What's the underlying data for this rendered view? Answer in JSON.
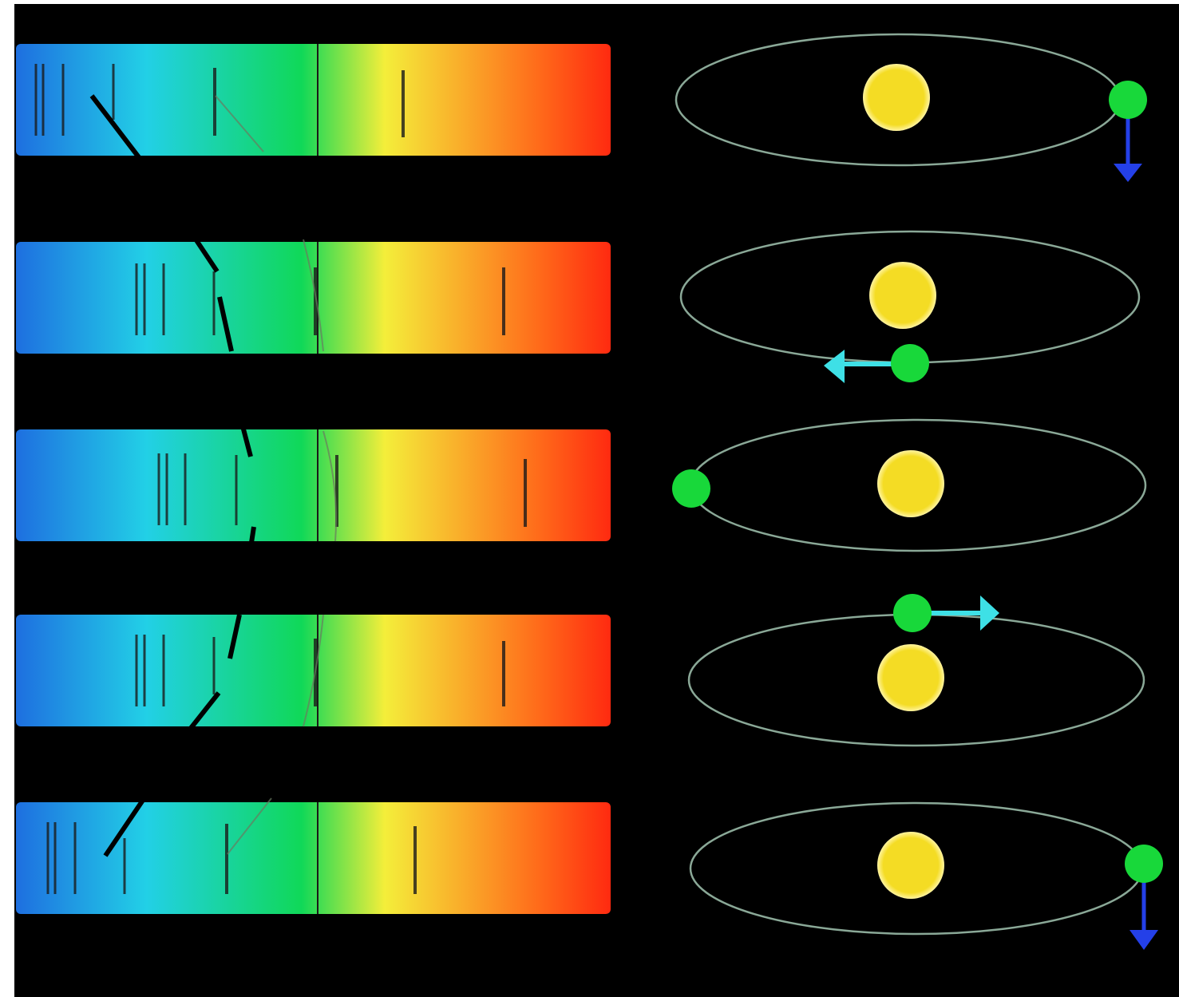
{
  "colors": {
    "background": "#000000",
    "spectrum": [
      "#1e6fe0",
      "#22d0e6",
      "#10d858",
      "#f4ee3a",
      "#ff6a1a",
      "#ff2a10"
    ],
    "absorption_line": "#1a1a1a",
    "orbit": "#8aa897",
    "star": "#f4dc24",
    "star_rim": "#fff4a0",
    "planet": "#18d83a",
    "velocity_arrow_side": "#3ee0e6",
    "velocity_arrow_down": "#2440e8",
    "doppler_curve": "#000000"
  },
  "icons": {
    "star": "star-icon",
    "planet": "planet-icon",
    "arrow_left": "arrow-left-icon",
    "arrow_right": "arrow-right-icon",
    "arrow_down": "arrow-down-icon"
  },
  "panels": [
    {
      "planet_position": "right",
      "velocity_arrow": "down",
      "line_shift": "blue"
    },
    {
      "planet_position": "front",
      "velocity_arrow": "left",
      "line_shift": "none"
    },
    {
      "planet_position": "left",
      "velocity_arrow": "none",
      "line_shift": "red"
    },
    {
      "planet_position": "back",
      "velocity_arrow": "right",
      "line_shift": "none"
    },
    {
      "planet_position": "right",
      "velocity_arrow": "down",
      "line_shift": "blue"
    }
  ]
}
